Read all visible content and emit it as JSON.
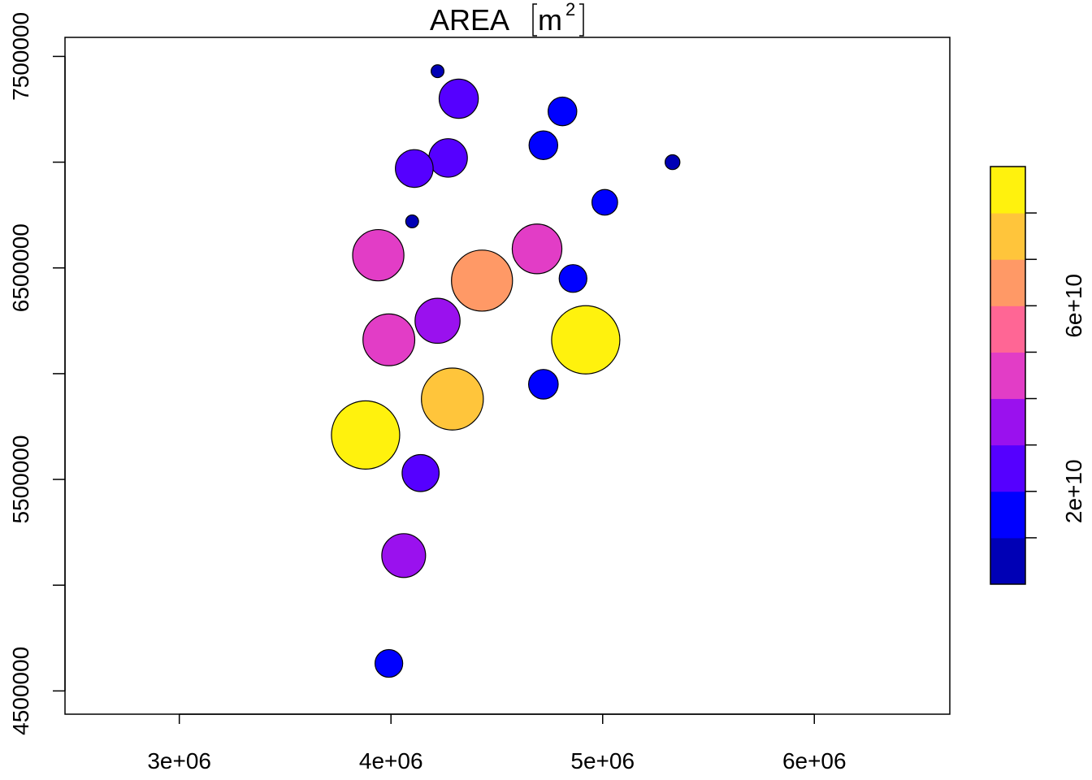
{
  "chart_data": {
    "type": "scatter",
    "title": "AREA",
    "title_unit_base": "m",
    "title_unit_exp": "2",
    "x_ticks": [
      {
        "value": 3000000,
        "label": "3e+06"
      },
      {
        "value": 4000000,
        "label": "4e+06"
      },
      {
        "value": 5000000,
        "label": "5e+06"
      },
      {
        "value": 6000000,
        "label": "6e+06"
      }
    ],
    "y_ticks": [
      {
        "value": 4500000,
        "label": "4500000"
      },
      {
        "value": 5000000,
        "label": ""
      },
      {
        "value": 5500000,
        "label": "5500000"
      },
      {
        "value": 6000000,
        "label": ""
      },
      {
        "value": 6500000,
        "label": "6500000"
      },
      {
        "value": 7000000,
        "label": ""
      },
      {
        "value": 7500000,
        "label": "7500000"
      }
    ],
    "xlim": [
      2460000,
      6640000
    ],
    "ylim": [
      4390000,
      7590000
    ],
    "grid": false,
    "legend": {
      "position": "right",
      "colors": [
        "#0000b5",
        "#0000ff",
        "#5500ff",
        "#9a11ee",
        "#e23dc6",
        "#ff6695",
        "#ff9966",
        "#ffc53b",
        "#fff20d"
      ],
      "range": [
        0,
        90000000000
      ],
      "ticks": [
        {
          "value": 10000000000,
          "label": ""
        },
        {
          "value": 20000000000,
          "label": "2e+10"
        },
        {
          "value": 30000000000,
          "label": ""
        },
        {
          "value": 40000000000,
          "label": ""
        },
        {
          "value": 50000000000,
          "label": ""
        },
        {
          "value": 60000000000,
          "label": "6e+10"
        },
        {
          "value": 70000000000,
          "label": ""
        },
        {
          "value": 80000000000,
          "label": ""
        }
      ]
    },
    "points": [
      {
        "x": 4220000,
        "y": 7430000,
        "area": 3000000000
      },
      {
        "x": 4320000,
        "y": 7300000,
        "area": 28000000000
      },
      {
        "x": 4810000,
        "y": 7240000,
        "area": 15000000000
      },
      {
        "x": 4720000,
        "y": 7080000,
        "area": 15000000000
      },
      {
        "x": 5330000,
        "y": 7000000,
        "area": 4000000000
      },
      {
        "x": 4270000,
        "y": 7020000,
        "area": 27000000000
      },
      {
        "x": 4110000,
        "y": 6970000,
        "area": 26000000000
      },
      {
        "x": 5010000,
        "y": 6810000,
        "area": 12000000000
      },
      {
        "x": 4100000,
        "y": 6720000,
        "area": 3000000000
      },
      {
        "x": 3940000,
        "y": 6560000,
        "area": 48000000000
      },
      {
        "x": 4690000,
        "y": 6590000,
        "area": 45000000000
      },
      {
        "x": 4430000,
        "y": 6440000,
        "area": 68000000000
      },
      {
        "x": 4860000,
        "y": 6450000,
        "area": 14000000000
      },
      {
        "x": 4220000,
        "y": 6250000,
        "area": 37000000000
      },
      {
        "x": 3990000,
        "y": 6160000,
        "area": 49000000000
      },
      {
        "x": 4920000,
        "y": 6160000,
        "area": 85000000000
      },
      {
        "x": 4720000,
        "y": 5950000,
        "area": 16000000000
      },
      {
        "x": 4290000,
        "y": 5880000,
        "area": 70000000000
      },
      {
        "x": 3880000,
        "y": 5710000,
        "area": 85000000000
      },
      {
        "x": 4140000,
        "y": 5530000,
        "area": 25000000000
      },
      {
        "x": 4060000,
        "y": 5140000,
        "area": 35000000000
      },
      {
        "x": 3990000,
        "y": 4630000,
        "area": 14000000000
      }
    ]
  }
}
